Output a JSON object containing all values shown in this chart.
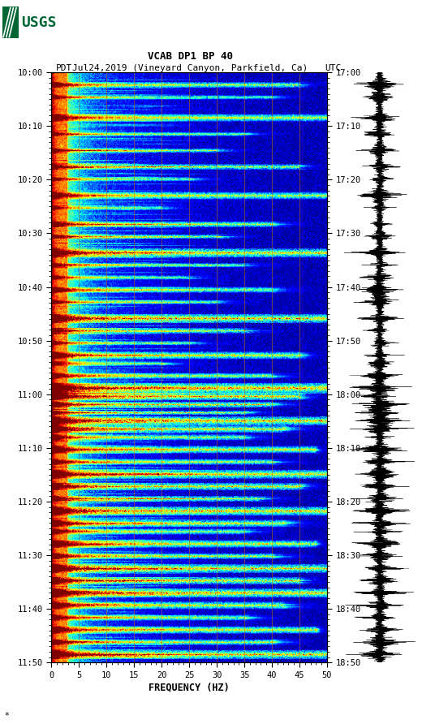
{
  "title_line1": "VCAB DP1 BP 40",
  "title_line2_left": "PDT",
  "title_line2_center": "Jul24,2019 (Vineyard Canyon, Parkfield, Ca)",
  "title_line2_right": "UTC",
  "xlabel": "FREQUENCY (HZ)",
  "freq_min": 0,
  "freq_max": 50,
  "freq_ticks": [
    0,
    5,
    10,
    15,
    20,
    25,
    30,
    35,
    40,
    45,
    50
  ],
  "time_labels_left": [
    "10:00",
    "10:10",
    "10:20",
    "10:30",
    "10:40",
    "10:50",
    "11:00",
    "11:10",
    "11:20",
    "11:30",
    "11:40",
    "11:50"
  ],
  "time_labels_right": [
    "17:00",
    "17:10",
    "17:20",
    "17:30",
    "17:40",
    "17:50",
    "18:00",
    "18:10",
    "18:20",
    "18:30",
    "18:40",
    "18:50"
  ],
  "n_time_steps": 720,
  "n_freq_bins": 500,
  "bg_color": "#ffffff",
  "spectrogram_cmap": "jet",
  "vertical_lines_freq": [
    5,
    10,
    15,
    20,
    25,
    30,
    35,
    40,
    45
  ],
  "vertical_line_color": "#bb7700",
  "vertical_line_alpha": 0.55,
  "usgs_logo_color": "#006633",
  "text_color": "#000000",
  "title_fontsize": 9,
  "tick_fontsize": 7.5,
  "label_fontsize": 8.5,
  "vline_linewidth": 0.7
}
